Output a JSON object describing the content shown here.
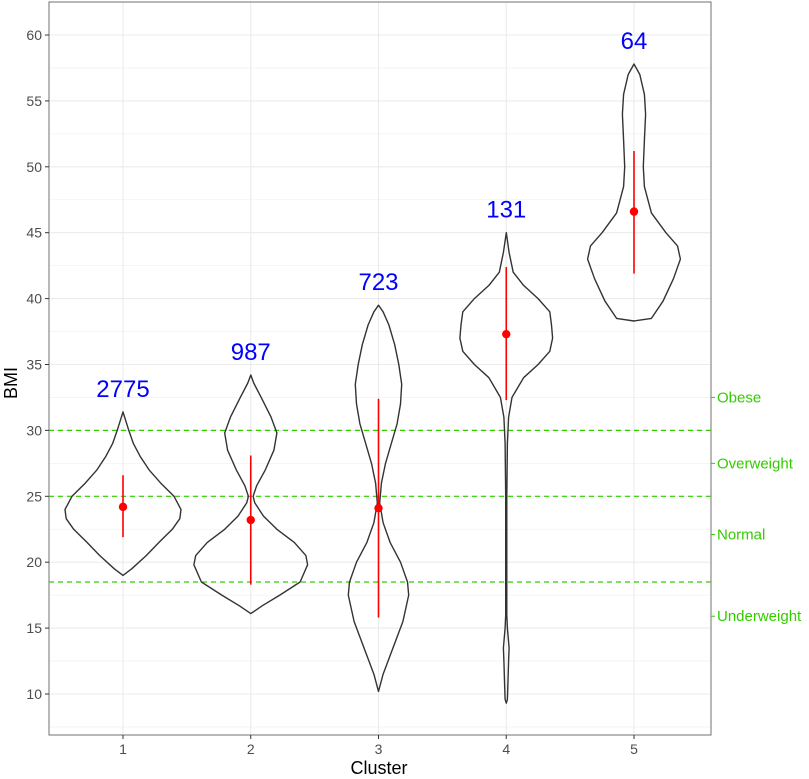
{
  "chart_data": {
    "type": "violin",
    "xlabel": "Cluster",
    "ylabel": "BMI",
    "categories": [
      "1",
      "2",
      "3",
      "4",
      "5"
    ],
    "ylim": [
      8,
      62.5
    ],
    "y_ticks": [
      10,
      15,
      20,
      25,
      30,
      35,
      40,
      45,
      50,
      55,
      60
    ],
    "y_tick_labels": [
      "10",
      "15",
      "20",
      "25",
      "30",
      "35",
      "40",
      "45",
      "50",
      "55",
      "60"
    ],
    "x_tick_labels": [
      "1",
      "2",
      "3",
      "4",
      "5"
    ],
    "grid": true,
    "colors": {
      "violin_outline": "#333333",
      "summary": "#ff0000",
      "counts": "#0000ff",
      "thresholds": "#33cc00",
      "grid": "#ebebeb",
      "panel_border": "#7f7f7f"
    },
    "clusters": [
      {
        "name": "1",
        "count": "2775",
        "point": 24.2,
        "interval": [
          21.9,
          26.6
        ],
        "profile": [
          [
            19.0,
            0
          ],
          [
            19.5,
            0.15
          ],
          [
            20.5,
            0.4
          ],
          [
            21.5,
            0.62
          ],
          [
            22.5,
            0.85
          ],
          [
            23.3,
            0.98
          ],
          [
            24.0,
            1.0
          ],
          [
            25.0,
            0.88
          ],
          [
            26.0,
            0.65
          ],
          [
            27.0,
            0.45
          ],
          [
            28.0,
            0.3
          ],
          [
            29.0,
            0.18
          ],
          [
            30.0,
            0.1
          ],
          [
            31.4,
            0
          ]
        ]
      },
      {
        "name": "2",
        "count": "987",
        "point": 23.2,
        "interval": [
          18.3,
          28.1
        ],
        "profile": [
          [
            16.1,
            0
          ],
          [
            16.7,
            0.2
          ],
          [
            17.5,
            0.5
          ],
          [
            18.5,
            0.85
          ],
          [
            19.8,
            0.98
          ],
          [
            20.5,
            0.95
          ],
          [
            21.5,
            0.75
          ],
          [
            22.5,
            0.45
          ],
          [
            23.5,
            0.22
          ],
          [
            24.5,
            0.07
          ],
          [
            25.0,
            0.04
          ],
          [
            25.8,
            0.1
          ],
          [
            27.0,
            0.25
          ],
          [
            28.5,
            0.4
          ],
          [
            29.8,
            0.45
          ],
          [
            31.0,
            0.35
          ],
          [
            32.5,
            0.18
          ],
          [
            33.6,
            0.05
          ],
          [
            34.2,
            0
          ]
        ]
      },
      {
        "name": "3",
        "count": "723",
        "point": 24.1,
        "interval": [
          15.8,
          32.4
        ],
        "profile": [
          [
            10.2,
            0
          ],
          [
            11.5,
            0.08
          ],
          [
            13.5,
            0.25
          ],
          [
            15.5,
            0.42
          ],
          [
            17.5,
            0.52
          ],
          [
            18.5,
            0.5
          ],
          [
            20.0,
            0.38
          ],
          [
            21.5,
            0.2
          ],
          [
            23.0,
            0.08
          ],
          [
            24.5,
            0.02
          ],
          [
            26.0,
            0.05
          ],
          [
            27.5,
            0.12
          ],
          [
            29.0,
            0.22
          ],
          [
            30.5,
            0.32
          ],
          [
            32.0,
            0.38
          ],
          [
            33.5,
            0.4
          ],
          [
            35.0,
            0.35
          ],
          [
            36.5,
            0.28
          ],
          [
            38.0,
            0.18
          ],
          [
            39.0,
            0.08
          ],
          [
            39.5,
            0
          ]
        ]
      },
      {
        "name": "4",
        "count": "131",
        "point": 37.3,
        "interval": [
          32.3,
          42.4
        ],
        "profile": [
          [
            9.3,
            0
          ],
          [
            9.6,
            0.02
          ],
          [
            11.0,
            0.03
          ],
          [
            12.5,
            0.04
          ],
          [
            13.5,
            0.05
          ],
          [
            15.0,
            0.02
          ],
          [
            16.0,
            0.01
          ],
          [
            20.0,
            0.01
          ],
          [
            25.0,
            0.01
          ],
          [
            29.0,
            0.02
          ],
          [
            31.0,
            0.04
          ],
          [
            32.5,
            0.1
          ],
          [
            34.0,
            0.3
          ],
          [
            35.0,
            0.55
          ],
          [
            36.0,
            0.75
          ],
          [
            37.0,
            0.8
          ],
          [
            38.0,
            0.78
          ],
          [
            39.0,
            0.75
          ],
          [
            40.0,
            0.55
          ],
          [
            41.0,
            0.3
          ],
          [
            42.0,
            0.12
          ],
          [
            43.5,
            0.05
          ],
          [
            45.0,
            0
          ]
        ]
      },
      {
        "name": "5",
        "count": "64",
        "point": 46.6,
        "interval": [
          41.9,
          51.2
        ],
        "profile": [
          [
            38.3,
            0
          ],
          [
            38.5,
            0.3
          ],
          [
            39.8,
            0.5
          ],
          [
            41.5,
            0.68
          ],
          [
            43.0,
            0.8
          ],
          [
            44.0,
            0.75
          ],
          [
            45.0,
            0.55
          ],
          [
            46.5,
            0.3
          ],
          [
            48.5,
            0.18
          ],
          [
            50.0,
            0.16
          ],
          [
            52.0,
            0.18
          ],
          [
            54.0,
            0.2
          ],
          [
            55.5,
            0.18
          ],
          [
            57.0,
            0.1
          ],
          [
            57.8,
            0
          ]
        ]
      }
    ],
    "thresholds": [
      18.5,
      25,
      30
    ],
    "bmi_categories": [
      {
        "label": "Underweight",
        "y": 15.9
      },
      {
        "label": "Normal",
        "y": 22.1
      },
      {
        "label": "Overweight",
        "y": 27.5
      },
      {
        "label": "Obese",
        "y": 32.5
      }
    ]
  }
}
